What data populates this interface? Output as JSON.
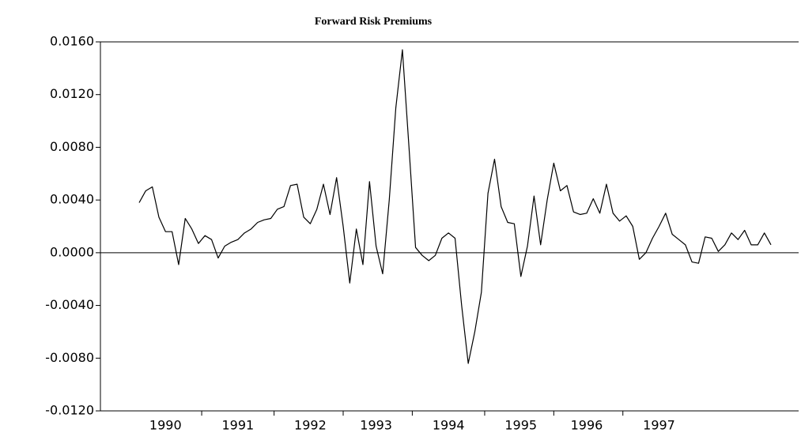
{
  "chart_data": {
    "type": "line",
    "title": "Forward Risk Premiums",
    "categories": [
      null,
      null,
      null,
      null,
      "1990",
      null,
      null,
      null,
      null,
      null,
      null,
      null,
      null,
      null,
      null,
      "1991",
      null,
      null,
      null,
      null,
      null,
      null,
      null,
      null,
      null,
      null,
      "1992",
      null,
      null,
      null,
      null,
      null,
      null,
      null,
      null,
      null,
      "1993",
      null,
      null,
      null,
      null,
      null,
      null,
      null,
      null,
      null,
      null,
      "1994",
      null,
      null,
      null,
      null,
      null,
      null,
      null,
      null,
      null,
      null,
      "1995",
      null,
      null,
      null,
      null,
      null,
      null,
      null,
      null,
      null,
      "1996",
      null,
      null,
      null,
      null,
      null,
      null,
      null,
      null,
      null,
      null,
      "1997",
      null,
      null,
      null,
      null,
      null,
      null,
      null,
      null,
      null,
      null,
      null,
      null,
      null,
      null,
      null,
      null,
      null
    ],
    "series": [
      {
        "name": "Forward Risk Premiums",
        "color": "#000000",
        "values": [
          0.0038,
          0.0047,
          0.005,
          0.0027,
          0.0016,
          0.0016,
          -0.0009,
          0.0026,
          0.0018,
          0.0007,
          0.0013,
          0.001,
          -0.0004,
          0.0005,
          0.0008,
          0.001,
          0.0015,
          0.0018,
          0.0023,
          0.0025,
          0.0026,
          0.0033,
          0.0035,
          0.0051,
          0.0052,
          0.0027,
          0.0022,
          0.0033,
          0.0052,
          0.0029,
          0.0057,
          0.002,
          -0.0023,
          0.0018,
          -0.0009,
          0.0054,
          0.0005,
          -0.0016,
          0.004,
          0.011,
          0.0154,
          0.008,
          0.0004,
          -0.0002,
          -0.0006,
          -0.0002,
          0.0011,
          0.0015,
          0.0011,
          -0.004,
          -0.0084,
          -0.006,
          -0.003,
          0.0045,
          0.0071,
          0.0035,
          0.0023,
          0.0022,
          -0.0018,
          0.0005,
          0.0043,
          0.0006,
          0.004,
          0.0068,
          0.0047,
          0.0051,
          0.0031,
          0.0029,
          0.003,
          0.0041,
          0.003,
          0.0052,
          0.003,
          0.0024,
          0.0028,
          0.002,
          -0.0005,
          0.0,
          0.0011,
          0.002,
          0.003,
          0.0014,
          0.001,
          0.0006,
          -0.0007,
          -0.0008,
          0.0012,
          0.0011,
          0.0001,
          0.0006,
          0.0015,
          0.001,
          0.0017,
          0.0006,
          0.0006,
          0.0015,
          0.0006
        ]
      }
    ],
    "ylim": [
      -0.012,
      0.016
    ],
    "yticks": [
      {
        "value": -0.012,
        "label": "-0.0120"
      },
      {
        "value": -0.008,
        "label": "-0.0080"
      },
      {
        "value": -0.004,
        "label": "-0.0040"
      },
      {
        "value": 0,
        "label": "0.0000"
      },
      {
        "value": 0.004,
        "label": "0.0040"
      },
      {
        "value": 0.008,
        "label": "0.0080"
      },
      {
        "value": 0.012,
        "label": "0.0120"
      },
      {
        "value": 0.016,
        "label": "0.0160"
      }
    ],
    "grid": false
  }
}
